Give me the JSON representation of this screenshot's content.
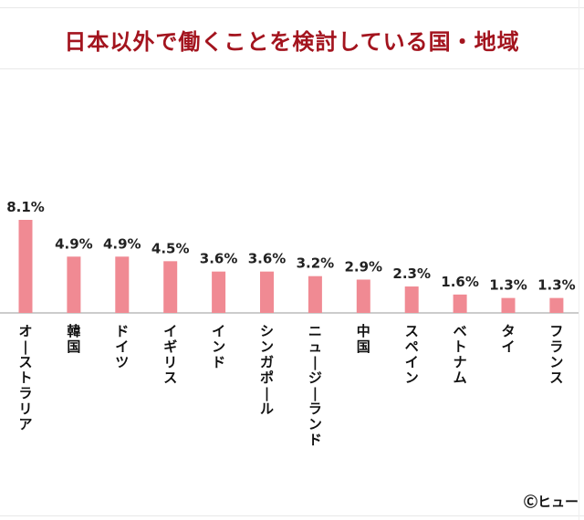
{
  "chart_data": {
    "type": "bar",
    "title": "日本以外で働くことを検討している国・地域",
    "categories": [
      "オーストラリア",
      "韓国",
      "ドイツ",
      "イギリス",
      "インド",
      "シンガポール",
      "ニュージーランド",
      "中国",
      "スペイン",
      "ベトナム",
      "タイ",
      "フランス"
    ],
    "values": [
      8.1,
      4.9,
      4.9,
      4.5,
      3.6,
      3.6,
      3.2,
      2.9,
      2.3,
      1.6,
      1.3,
      1.3
    ],
    "value_labels": [
      "8.1%",
      "4.9%",
      "4.9%",
      "4.5%",
      "3.6%",
      "3.6%",
      "3.2%",
      "2.9%",
      "2.3%",
      "1.6%",
      "1.3%",
      "1.3%"
    ],
    "xlabel": "",
    "ylabel": "",
    "ylim": [
      0,
      8.1
    ],
    "grid": false,
    "bar_color": "#f08a93",
    "title_color": "#a3141e"
  },
  "credit": "Ⓒヒュー"
}
